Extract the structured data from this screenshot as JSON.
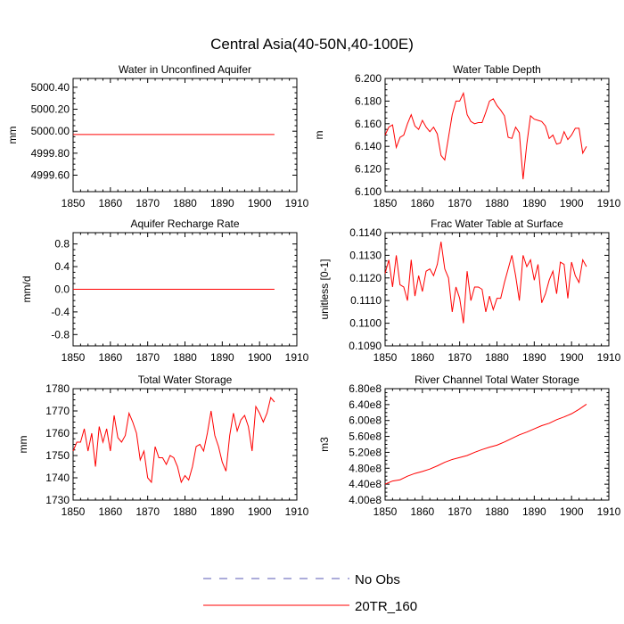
{
  "figure_title": "Central Asia(40-50N,40-100E)",
  "legend": {
    "entries": [
      {
        "label": "No Obs",
        "color": "#5a5ab4",
        "dashed": true
      },
      {
        "label": "20TR_160",
        "color": "#ff0000",
        "dashed": false
      }
    ]
  },
  "chart_data": [
    {
      "type": "line",
      "title": "Water in Unconfined Aquifer",
      "ylabel": "mm",
      "xlim": [
        1850,
        1910
      ],
      "ylim": [
        4999.45,
        5000.48
      ],
      "xticks": [
        1850,
        1860,
        1870,
        1880,
        1890,
        1900,
        1910
      ],
      "yticks": [
        4999.6,
        4999.8,
        5000.0,
        5000.2,
        5000.4
      ],
      "ytick_labels": [
        "4999.60",
        "4999.80",
        "5000.00",
        "5000.20",
        "5000.40"
      ],
      "grid": false,
      "series": [
        {
          "name": "20TR_160",
          "color": "#ff0000",
          "x": [
            1850,
            1904
          ],
          "y": [
            4999.97,
            4999.97
          ]
        }
      ]
    },
    {
      "type": "line",
      "title": "Water Table Depth",
      "ylabel": "m",
      "xlim": [
        1850,
        1910
      ],
      "ylim": [
        6.1,
        6.2
      ],
      "xticks": [
        1850,
        1860,
        1870,
        1880,
        1890,
        1900,
        1910
      ],
      "yticks": [
        6.1,
        6.12,
        6.14,
        6.16,
        6.18,
        6.2
      ],
      "ytick_labels": [
        "6.100",
        "6.120",
        "6.140",
        "6.160",
        "6.180",
        "6.200"
      ],
      "grid": false,
      "series": [
        {
          "name": "20TR_160",
          "color": "#ff0000",
          "x": [
            1850,
            1851,
            1852,
            1853,
            1854,
            1855,
            1856,
            1857,
            1858,
            1859,
            1860,
            1861,
            1862,
            1863,
            1864,
            1865,
            1866,
            1867,
            1868,
            1869,
            1870,
            1871,
            1872,
            1873,
            1874,
            1875,
            1876,
            1877,
            1878,
            1879,
            1880,
            1881,
            1882,
            1883,
            1884,
            1885,
            1886,
            1887,
            1888,
            1889,
            1890,
            1891,
            1892,
            1893,
            1894,
            1895,
            1896,
            1897,
            1898,
            1899,
            1900,
            1901,
            1902,
            1903,
            1904
          ],
          "y": [
            6.15,
            6.157,
            6.159,
            6.139,
            6.148,
            6.15,
            6.16,
            6.168,
            6.158,
            6.155,
            6.163,
            6.157,
            6.153,
            6.157,
            6.151,
            6.132,
            6.128,
            6.148,
            6.168,
            6.18,
            6.18,
            6.187,
            6.168,
            6.162,
            6.16,
            6.161,
            6.161,
            6.17,
            6.18,
            6.182,
            6.176,
            6.172,
            6.167,
            6.148,
            6.147,
            6.157,
            6.152,
            6.111,
            6.142,
            6.167,
            6.164,
            6.163,
            6.162,
            6.158,
            6.147,
            6.15,
            6.142,
            6.143,
            6.153,
            6.146,
            6.15,
            6.156,
            6.156,
            6.134,
            6.14
          ]
        }
      ]
    },
    {
      "type": "line",
      "title": "Aquifer Recharge Rate",
      "ylabel": "mm/d",
      "xlim": [
        1850,
        1910
      ],
      "ylim": [
        -1.0,
        1.0
      ],
      "xticks": [
        1850,
        1860,
        1870,
        1880,
        1890,
        1900,
        1910
      ],
      "yticks": [
        -0.8,
        -0.4,
        0.0,
        0.4,
        0.8
      ],
      "ytick_labels": [
        "-0.8",
        "-0.4",
        "0.0",
        "0.4",
        "0.8"
      ],
      "grid": false,
      "series": [
        {
          "name": "20TR_160",
          "color": "#ff0000",
          "x": [
            1850,
            1904
          ],
          "y": [
            0.0,
            0.0
          ]
        }
      ]
    },
    {
      "type": "line",
      "title": "Frac Water Table at Surface",
      "ylabel": "unitless [0-1]",
      "xlim": [
        1850,
        1910
      ],
      "ylim": [
        0.109,
        0.114
      ],
      "xticks": [
        1850,
        1860,
        1870,
        1880,
        1890,
        1900,
        1910
      ],
      "yticks": [
        0.109,
        0.11,
        0.111,
        0.112,
        0.113,
        0.114
      ],
      "ytick_labels": [
        "0.1090",
        "0.1100",
        "0.1110",
        "0.1120",
        "0.1130",
        "0.1140"
      ],
      "grid": false,
      "series": [
        {
          "name": "20TR_160",
          "color": "#ff0000",
          "x": [
            1850,
            1851,
            1852,
            1853,
            1854,
            1855,
            1856,
            1857,
            1858,
            1859,
            1860,
            1861,
            1862,
            1863,
            1864,
            1865,
            1866,
            1867,
            1868,
            1869,
            1870,
            1871,
            1872,
            1873,
            1874,
            1875,
            1876,
            1877,
            1878,
            1879,
            1880,
            1881,
            1882,
            1883,
            1884,
            1885,
            1886,
            1887,
            1888,
            1889,
            1890,
            1891,
            1892,
            1893,
            1894,
            1895,
            1896,
            1897,
            1898,
            1899,
            1900,
            1901,
            1902,
            1903,
            1904
          ],
          "y": [
            0.1122,
            0.1128,
            0.1116,
            0.113,
            0.1117,
            0.1116,
            0.111,
            0.1128,
            0.1112,
            0.1121,
            0.1114,
            0.1123,
            0.1124,
            0.1121,
            0.1126,
            0.1136,
            0.1124,
            0.112,
            0.1105,
            0.1116,
            0.1111,
            0.11,
            0.1123,
            0.111,
            0.1116,
            0.1116,
            0.1115,
            0.1105,
            0.1112,
            0.1106,
            0.1111,
            0.1111,
            0.1118,
            0.1124,
            0.113,
            0.1121,
            0.111,
            0.113,
            0.1125,
            0.1128,
            0.1119,
            0.1126,
            0.1109,
            0.1113,
            0.1119,
            0.1123,
            0.1113,
            0.1127,
            0.1126,
            0.1111,
            0.1127,
            0.1121,
            0.1118,
            0.1128,
            0.1125
          ]
        }
      ]
    },
    {
      "type": "line",
      "title": "Total Water Storage",
      "ylabel": "mm",
      "xlim": [
        1850,
        1910
      ],
      "ylim": [
        1730,
        1780
      ],
      "xticks": [
        1850,
        1860,
        1870,
        1880,
        1890,
        1900,
        1910
      ],
      "yticks": [
        1730,
        1740,
        1750,
        1760,
        1770,
        1780
      ],
      "ytick_labels": [
        "1730",
        "1740",
        "1750",
        "1760",
        "1770",
        "1780"
      ],
      "grid": false,
      "series": [
        {
          "name": "20TR_160",
          "color": "#ff0000",
          "x": [
            1850,
            1851,
            1852,
            1853,
            1854,
            1855,
            1856,
            1857,
            1858,
            1859,
            1860,
            1861,
            1862,
            1863,
            1864,
            1865,
            1866,
            1867,
            1868,
            1869,
            1870,
            1871,
            1872,
            1873,
            1874,
            1875,
            1876,
            1877,
            1878,
            1879,
            1880,
            1881,
            1882,
            1883,
            1884,
            1885,
            1886,
            1887,
            1888,
            1889,
            1890,
            1891,
            1892,
            1893,
            1894,
            1895,
            1896,
            1897,
            1898,
            1899,
            1900,
            1901,
            1902,
            1903,
            1904
          ],
          "y": [
            1752,
            1756,
            1756,
            1762,
            1752,
            1760,
            1745,
            1763,
            1756,
            1762,
            1752,
            1768,
            1758,
            1756,
            1759,
            1769,
            1765,
            1760,
            1748,
            1752,
            1740,
            1738,
            1754,
            1749,
            1749,
            1746,
            1750,
            1749,
            1745,
            1738,
            1741,
            1739,
            1745,
            1754,
            1755,
            1752,
            1760,
            1770,
            1759,
            1754,
            1747,
            1743,
            1759,
            1769,
            1761,
            1766,
            1768,
            1763,
            1752,
            1772,
            1769,
            1765,
            1769,
            1776,
            1774
          ]
        }
      ]
    },
    {
      "type": "line",
      "title": "River Channel Total Water Storage",
      "ylabel": "m3",
      "xlim": [
        1850,
        1910
      ],
      "ylim": [
        400000000.0,
        680000000.0
      ],
      "xticks": [
        1850,
        1860,
        1870,
        1880,
        1890,
        1900,
        1910
      ],
      "yticks": [
        400000000.0,
        440000000.0,
        480000000.0,
        520000000.0,
        560000000.0,
        600000000.0,
        640000000.0,
        680000000.0
      ],
      "ytick_labels": [
        "4.00e8",
        "4.40e8",
        "4.80e8",
        "5.20e8",
        "5.60e8",
        "6.00e8",
        "6.40e8",
        "6.80e8"
      ],
      "grid": false,
      "series": [
        {
          "name": "20TR_160",
          "color": "#ff0000",
          "x": [
            1850,
            1852,
            1854,
            1856,
            1858,
            1860,
            1862,
            1864,
            1866,
            1868,
            1870,
            1872,
            1874,
            1876,
            1878,
            1880,
            1882,
            1884,
            1886,
            1888,
            1890,
            1892,
            1894,
            1896,
            1898,
            1900,
            1902,
            1904
          ],
          "y": [
            440000000.0,
            448000000.0,
            451000000.0,
            460000000.0,
            467000000.0,
            472000000.0,
            478000000.0,
            486000000.0,
            495000000.0,
            502000000.0,
            507000000.0,
            512000000.0,
            520000000.0,
            527000000.0,
            533000000.0,
            538000000.0,
            546000000.0,
            555000000.0,
            564000000.0,
            571000000.0,
            579000000.0,
            587000000.0,
            593000000.0,
            602000000.0,
            609000000.0,
            617000000.0,
            628000000.0,
            641000000.0
          ]
        }
      ]
    }
  ]
}
